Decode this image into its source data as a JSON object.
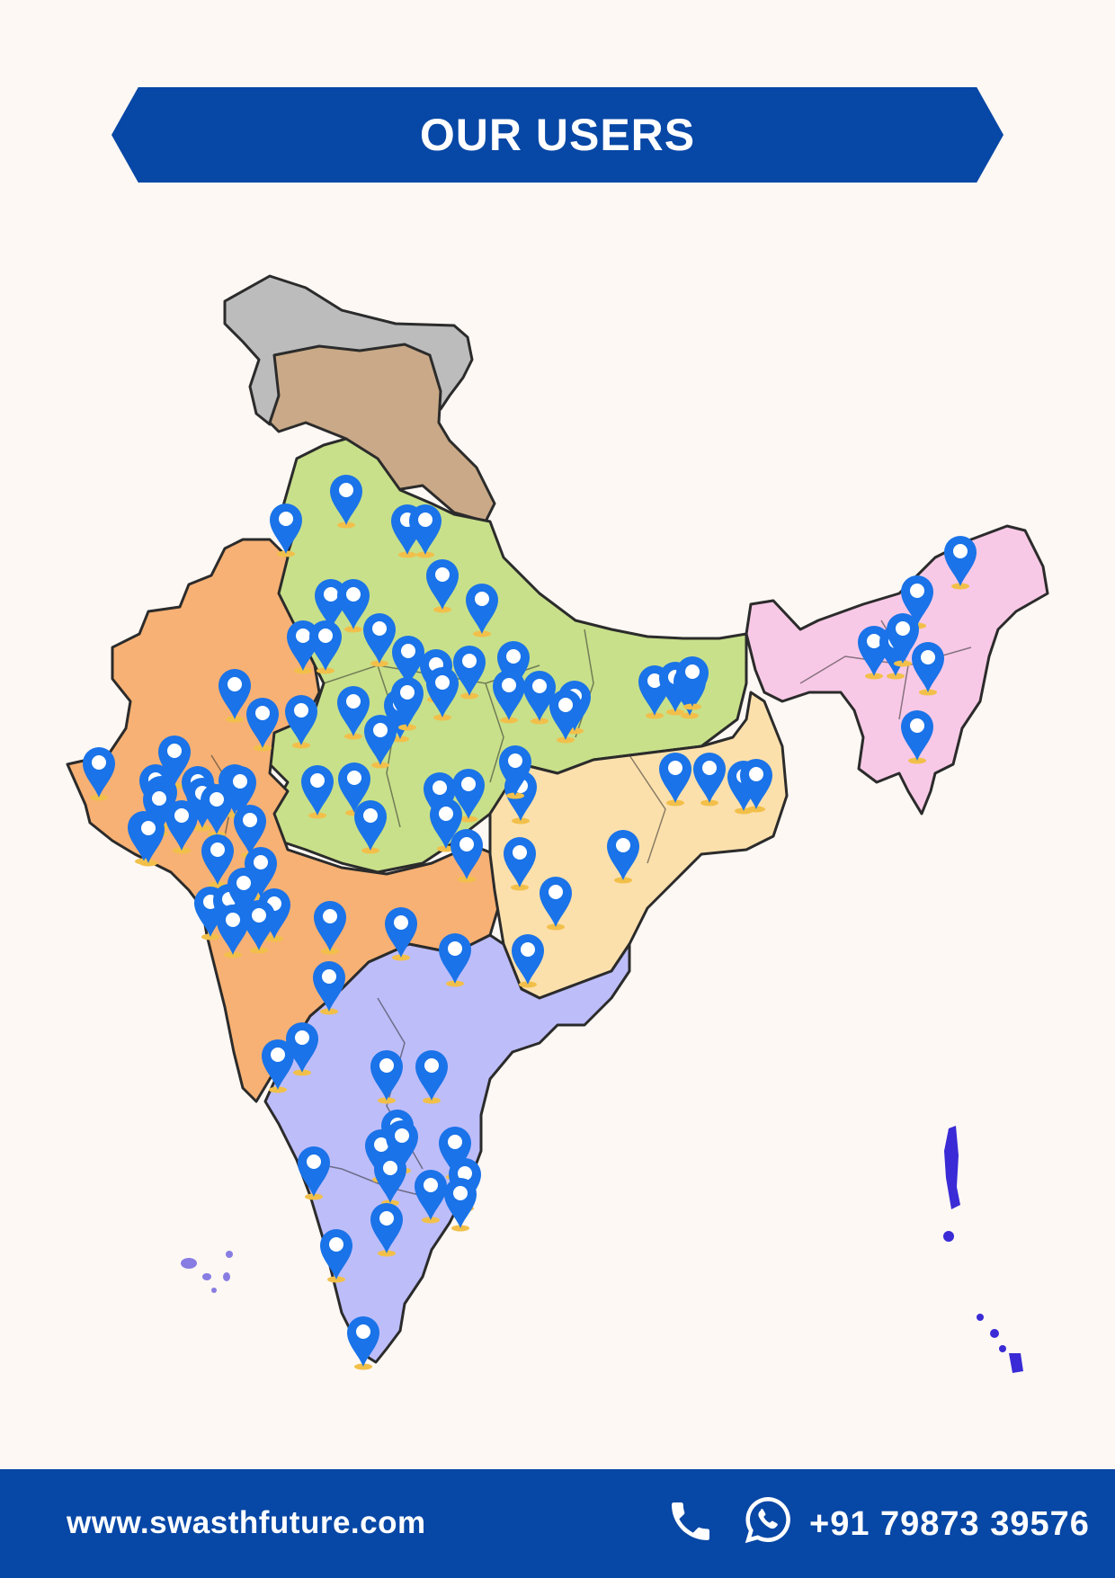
{
  "header": {
    "title": "OUR USERS"
  },
  "map": {
    "colors": {
      "jammu_kashmir": "#bcbcbc",
      "ladakh_himachal": "#c9a987",
      "north": "#c8e08a",
      "west": "#f7b174",
      "east": "#fce0ac",
      "south": "#bdbdfa",
      "northeast": "#f8c9e6",
      "islands": "#3a2bd6",
      "pin": "#1a73e8"
    },
    "pin_count": 97
  },
  "footer": {
    "website": "www.swasthfuture.com",
    "phone": "+91 79873 39576",
    "icons": [
      "phone-icon",
      "whatsapp-icon"
    ]
  }
}
